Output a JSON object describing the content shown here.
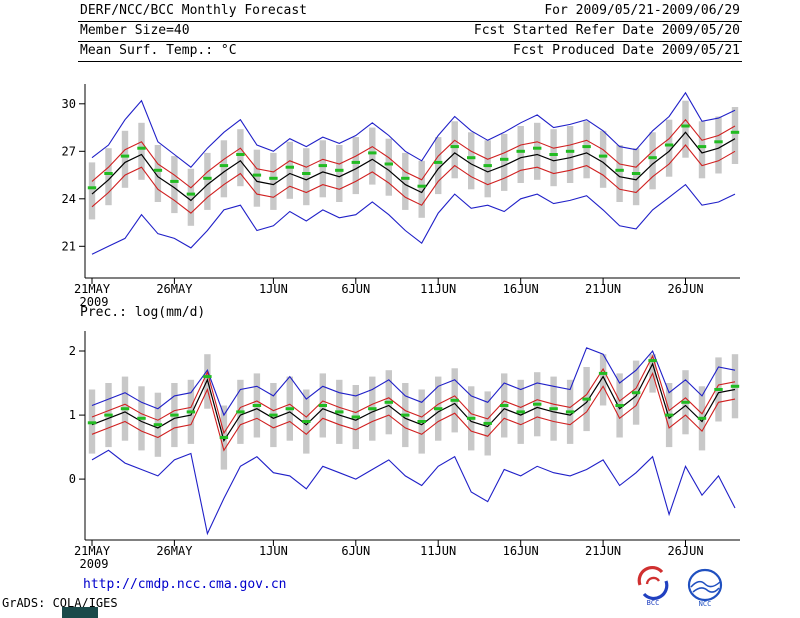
{
  "header": {
    "title": "DERF/NCC/BCC Monthly Forecast",
    "member_size": "Member Size=40",
    "variable": "Mean Surf. Temp.: °C",
    "period": "For 2009/05/21-2009/06/29",
    "refer_date": "Fcst Started Refer Date 2009/05/20",
    "produced_date": "Fcst Produced Date 2009/05/21"
  },
  "panel2_title": "Prec.: log(mm/d)",
  "footer": {
    "url": "http://cmdp.ncc.cma.gov.cn",
    "grads_credit": "GrADS: COLA/IGES",
    "logo1_label": "BCC",
    "logo2_label": "NCC"
  },
  "colors": {
    "blue": "#2020c8",
    "red": "#d02020",
    "black": "#000000",
    "green": "#22bb22",
    "bar": "#c8c8c8",
    "link": "#0000cc"
  },
  "chart_data": [
    {
      "type": "line",
      "name": "mean-surface-temperature",
      "title": "Mean Surf. Temp.: °C",
      "n": 40,
      "ylim": [
        19.0,
        31.0
      ],
      "yticks": [
        21,
        24,
        27,
        30
      ],
      "x_year": "2009",
      "x_ticks": [
        {
          "day": 0,
          "label": "21MAY"
        },
        {
          "day": 5,
          "label": "26MAY"
        },
        {
          "day": 11,
          "label": "1JUN"
        },
        {
          "day": 16,
          "label": "6JUN"
        },
        {
          "day": 21,
          "label": "11JUN"
        },
        {
          "day": 26,
          "label": "16JUN"
        },
        {
          "day": 31,
          "label": "21JUN"
        },
        {
          "day": 36,
          "label": "26JUN"
        }
      ],
      "bars": {
        "name": "ensemble-spread",
        "color": "#c8c8c8",
        "low": [
          22.7,
          23.6,
          24.7,
          25.2,
          23.8,
          23.1,
          22.3,
          23.3,
          24.1,
          24.8,
          23.5,
          23.3,
          24.0,
          23.6,
          24.1,
          23.8,
          24.3,
          24.9,
          24.2,
          23.3,
          22.8,
          24.3,
          25.3,
          24.6,
          24.1,
          24.5,
          25.0,
          25.2,
          24.8,
          25.0,
          25.3,
          24.7,
          23.8,
          23.6,
          24.6,
          25.4,
          26.6,
          25.3,
          25.6,
          26.2
        ],
        "high": [
          26.3,
          27.2,
          28.3,
          28.8,
          27.4,
          26.7,
          25.9,
          26.9,
          27.7,
          28.4,
          27.1,
          26.9,
          27.6,
          27.2,
          27.7,
          27.4,
          27.9,
          28.5,
          27.8,
          26.9,
          26.4,
          27.9,
          28.9,
          28.2,
          27.7,
          28.1,
          28.6,
          28.8,
          28.4,
          28.6,
          28.9,
          28.3,
          27.4,
          27.2,
          28.2,
          29.0,
          30.2,
          28.9,
          29.2,
          29.8
        ]
      },
      "series": [
        {
          "name": "ensemble-max",
          "color": "#2020c8",
          "width": 1.1,
          "values": [
            26.6,
            27.4,
            29.0,
            30.2,
            27.6,
            26.8,
            26.0,
            27.2,
            28.2,
            29.0,
            27.4,
            27.0,
            27.8,
            27.3,
            27.9,
            27.5,
            28.0,
            28.8,
            28.0,
            27.0,
            26.4,
            28.0,
            29.2,
            28.3,
            27.7,
            28.2,
            28.8,
            29.3,
            28.5,
            28.7,
            29.0,
            28.3,
            27.3,
            27.1,
            28.3,
            29.2,
            30.7,
            28.9,
            29.1,
            29.6
          ]
        },
        {
          "name": "upper-quartile",
          "color": "#d02020",
          "width": 1.1,
          "values": [
            25.1,
            26.0,
            27.1,
            27.6,
            26.2,
            25.5,
            24.7,
            25.7,
            26.5,
            27.2,
            25.9,
            25.7,
            26.4,
            26.0,
            26.5,
            26.2,
            26.7,
            27.3,
            26.6,
            25.7,
            25.2,
            26.7,
            27.7,
            27.0,
            26.5,
            26.9,
            27.4,
            27.6,
            27.2,
            27.4,
            27.7,
            27.1,
            26.2,
            26.0,
            27.0,
            27.8,
            29.0,
            27.7,
            28.0,
            28.6
          ]
        },
        {
          "name": "ensemble-mean",
          "color": "#000000",
          "width": 1.2,
          "values": [
            24.3,
            25.2,
            26.3,
            26.8,
            25.4,
            24.7,
            23.9,
            24.9,
            25.7,
            26.4,
            25.1,
            24.9,
            25.6,
            25.2,
            25.7,
            25.4,
            25.9,
            26.5,
            25.8,
            24.9,
            24.4,
            25.9,
            26.9,
            26.2,
            25.7,
            26.1,
            26.6,
            26.8,
            26.4,
            26.6,
            26.9,
            26.3,
            25.4,
            25.2,
            26.2,
            27.0,
            28.2,
            26.9,
            27.2,
            27.8
          ]
        },
        {
          "name": "lower-quartile",
          "color": "#d02020",
          "width": 1.1,
          "values": [
            23.5,
            24.4,
            25.5,
            26.0,
            24.6,
            23.9,
            23.1,
            24.1,
            24.9,
            25.6,
            24.3,
            24.1,
            24.8,
            24.4,
            24.9,
            24.6,
            25.1,
            25.7,
            25.0,
            24.1,
            23.6,
            25.1,
            26.1,
            25.4,
            24.9,
            25.3,
            25.8,
            26.0,
            25.6,
            25.8,
            26.1,
            25.5,
            24.6,
            24.4,
            25.4,
            26.2,
            27.4,
            26.1,
            26.4,
            27.0
          ]
        },
        {
          "name": "ensemble-min",
          "color": "#2020c8",
          "width": 1.1,
          "values": [
            20.5,
            21.0,
            21.5,
            23.0,
            21.8,
            21.5,
            20.9,
            22.0,
            23.3,
            23.6,
            22.0,
            22.3,
            23.2,
            22.6,
            23.3,
            22.8,
            23.0,
            23.8,
            23.0,
            22.0,
            21.2,
            23.1,
            24.3,
            23.4,
            23.6,
            23.2,
            24.0,
            24.3,
            23.7,
            23.9,
            24.2,
            23.3,
            22.3,
            22.1,
            23.3,
            24.1,
            24.9,
            23.6,
            23.8,
            24.3
          ]
        }
      ],
      "markers": {
        "name": "ensemble-median",
        "color": "#22bb22",
        "values": [
          24.7,
          25.6,
          26.7,
          27.2,
          25.8,
          25.1,
          24.3,
          25.3,
          26.1,
          26.8,
          25.5,
          25.3,
          26.0,
          25.6,
          26.1,
          25.8,
          26.3,
          26.9,
          26.2,
          25.3,
          24.8,
          26.3,
          27.3,
          26.6,
          26.1,
          26.5,
          27.0,
          27.2,
          26.8,
          27.0,
          27.3,
          26.7,
          25.8,
          25.6,
          26.6,
          27.4,
          28.6,
          27.3,
          27.6,
          28.2
        ]
      }
    },
    {
      "type": "line",
      "name": "precipitation-log",
      "title": "Prec.: log(mm/d)",
      "n": 40,
      "ylim": [
        -0.95,
        2.25
      ],
      "yticks": [
        0,
        1,
        2
      ],
      "x_year": "2009",
      "x_ticks": [
        {
          "day": 0,
          "label": "21MAY"
        },
        {
          "day": 5,
          "label": "26MAY"
        },
        {
          "day": 11,
          "label": "1JUN"
        },
        {
          "day": 16,
          "label": "6JUN"
        },
        {
          "day": 21,
          "label": "11JUN"
        },
        {
          "day": 26,
          "label": "16JUN"
        },
        {
          "day": 31,
          "label": "21JUN"
        },
        {
          "day": 36,
          "label": "26JUN"
        }
      ],
      "bars": {
        "name": "ensemble-spread",
        "color": "#c8c8c8",
        "low": [
          0.4,
          0.5,
          0.6,
          0.45,
          0.35,
          0.5,
          0.55,
          1.1,
          0.15,
          0.55,
          0.65,
          0.5,
          0.6,
          0.4,
          0.65,
          0.55,
          0.47,
          0.6,
          0.7,
          0.5,
          0.4,
          0.6,
          0.73,
          0.45,
          0.37,
          0.65,
          0.55,
          0.67,
          0.6,
          0.55,
          0.75,
          1.15,
          0.65,
          0.85,
          1.35,
          0.5,
          0.7,
          0.45,
          0.9,
          0.95
        ],
        "high": [
          1.4,
          1.5,
          1.6,
          1.45,
          1.35,
          1.5,
          1.55,
          1.95,
          1.15,
          1.55,
          1.65,
          1.5,
          1.6,
          1.4,
          1.65,
          1.55,
          1.47,
          1.6,
          1.7,
          1.5,
          1.4,
          1.6,
          1.73,
          1.45,
          1.37,
          1.65,
          1.55,
          1.67,
          1.6,
          1.55,
          1.75,
          1.95,
          1.65,
          1.85,
          1.95,
          1.5,
          1.7,
          1.45,
          1.9,
          1.95
        ]
      },
      "series": [
        {
          "name": "ensemble-max",
          "color": "#2020c8",
          "width": 1.1,
          "values": [
            1.15,
            1.25,
            1.35,
            1.2,
            1.1,
            1.3,
            1.35,
            1.7,
            1.0,
            1.4,
            1.45,
            1.3,
            1.6,
            1.25,
            1.45,
            1.35,
            1.3,
            1.4,
            1.55,
            1.3,
            1.2,
            1.45,
            1.55,
            1.3,
            1.2,
            1.5,
            1.4,
            1.5,
            1.45,
            1.4,
            2.05,
            1.95,
            1.5,
            1.7,
            2.0,
            1.35,
            1.55,
            1.3,
            1.75,
            1.7
          ]
        },
        {
          "name": "upper-quartile",
          "color": "#d02020",
          "width": 1.1,
          "values": [
            0.97,
            1.07,
            1.17,
            1.02,
            0.92,
            1.07,
            1.12,
            1.67,
            0.72,
            1.12,
            1.22,
            1.07,
            1.17,
            0.97,
            1.22,
            1.12,
            1.04,
            1.17,
            1.27,
            1.07,
            0.97,
            1.17,
            1.3,
            1.02,
            0.94,
            1.22,
            1.12,
            1.24,
            1.17,
            1.12,
            1.32,
            1.72,
            1.22,
            1.42,
            1.92,
            1.07,
            1.27,
            1.02,
            1.47,
            1.52
          ]
        },
        {
          "name": "ensemble-mean",
          "color": "#000000",
          "width": 1.2,
          "values": [
            0.85,
            0.95,
            1.05,
            0.9,
            0.8,
            0.95,
            1.0,
            1.55,
            0.6,
            1.0,
            1.1,
            0.95,
            1.05,
            0.85,
            1.1,
            1.0,
            0.92,
            1.05,
            1.15,
            0.95,
            0.85,
            1.05,
            1.18,
            0.9,
            0.82,
            1.1,
            1.0,
            1.12,
            1.05,
            1.0,
            1.2,
            1.6,
            1.1,
            1.3,
            1.8,
            0.95,
            1.15,
            0.9,
            1.35,
            1.4
          ]
        },
        {
          "name": "lower-quartile",
          "color": "#d02020",
          "width": 1.1,
          "values": [
            0.7,
            0.8,
            0.9,
            0.75,
            0.65,
            0.8,
            0.85,
            1.4,
            0.45,
            0.85,
            0.95,
            0.8,
            0.9,
            0.7,
            0.95,
            0.85,
            0.77,
            0.9,
            1.0,
            0.8,
            0.7,
            0.9,
            1.03,
            0.75,
            0.67,
            0.95,
            0.85,
            0.97,
            0.9,
            0.85,
            1.05,
            1.45,
            0.95,
            1.15,
            1.65,
            0.8,
            1.0,
            0.75,
            1.2,
            1.25
          ]
        },
        {
          "name": "ensemble-min",
          "color": "#2020c8",
          "width": 1.1,
          "values": [
            0.3,
            0.45,
            0.25,
            0.15,
            0.05,
            0.3,
            0.4,
            -0.85,
            -0.3,
            0.2,
            0.35,
            0.1,
            0.05,
            -0.15,
            0.2,
            0.1,
            0.0,
            0.15,
            0.3,
            0.05,
            -0.1,
            0.2,
            0.35,
            -0.2,
            -0.35,
            0.15,
            0.05,
            0.2,
            0.1,
            0.05,
            0.15,
            0.3,
            -0.1,
            0.1,
            0.35,
            -0.55,
            0.2,
            -0.25,
            0.05,
            -0.45
          ]
        }
      ],
      "markers": {
        "name": "ensemble-median",
        "color": "#22bb22",
        "values": [
          0.88,
          1.0,
          1.1,
          0.95,
          0.85,
          1.0,
          1.05,
          1.6,
          0.65,
          1.05,
          1.15,
          1.0,
          1.1,
          0.9,
          1.15,
          1.05,
          0.97,
          1.1,
          1.2,
          1.0,
          0.9,
          1.1,
          1.23,
          0.95,
          0.87,
          1.15,
          1.05,
          1.17,
          1.1,
          1.05,
          1.25,
          1.65,
          1.15,
          1.35,
          1.85,
          1.0,
          1.2,
          0.95,
          1.4,
          1.45
        ]
      }
    }
  ]
}
